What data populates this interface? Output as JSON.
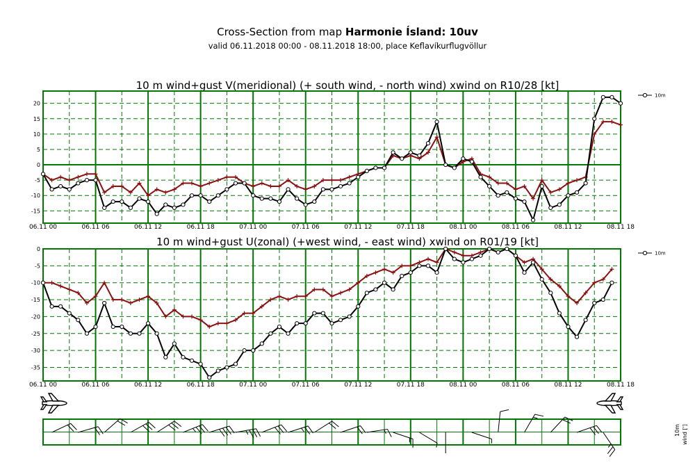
{
  "header": {
    "title_prefix": "Cross-Section from map ",
    "title_bold": "Harmonie Ísland: 10uv",
    "subtitle": "valid 06.11.2018 00:00 - 08.11.2018 18:00, place Keflavíkurflugvöllur"
  },
  "x_tick_labels": [
    "06.11 00",
    "06.11 06",
    "06.11 12",
    "06.11 18",
    "07.11 00",
    "07.11 06",
    "07.11 12",
    "07.11 18",
    "08.11 00",
    "08.11 06",
    "08.11 12",
    "08.11 18"
  ],
  "colors": {
    "grid": "#007700",
    "wind": "#000000",
    "gust": "#8b1010",
    "background": "#ffffff"
  },
  "icons": {
    "left": "airplane-icon",
    "right": "airplane-icon"
  },
  "barb_panel": {
    "label_level": "10m",
    "label_param": "wind [']"
  },
  "chart_data": [
    {
      "type": "line",
      "title": "10 m wind+gust V(meridional) (+ south wind, - north wind) xwind on R10/28 [kt]",
      "x_unit": "hours from 06.11.2018 00:00",
      "ylim": [
        -19,
        24
      ],
      "yticks": [
        20,
        15,
        10,
        5,
        0,
        -5,
        -10,
        -15
      ],
      "grid": true,
      "legend": "top-right",
      "series": [
        {
          "name": "10m",
          "color": "#000000",
          "marker": "circle",
          "values": [
            -3,
            -8,
            -7,
            -8,
            -6,
            -5,
            -5,
            -14,
            -12,
            -12,
            -14,
            -11,
            -12,
            -16,
            -13,
            -14,
            -13,
            -10,
            -10,
            -12,
            -10,
            -8,
            -6,
            -6,
            -10,
            -11,
            -11,
            -12,
            -8,
            -11,
            -13,
            -12,
            -8,
            -8,
            -7,
            -6,
            -4,
            -2,
            -1,
            -1,
            4,
            2,
            4,
            3,
            7,
            14,
            0,
            -1,
            2,
            1,
            -4,
            -7,
            -10,
            -9,
            -11,
            -12,
            -18,
            -7,
            -14,
            -13,
            -10,
            -9,
            -6,
            15,
            22,
            22,
            20
          ]
        },
        {
          "name": "",
          "color": "#8b1010",
          "marker": "plus",
          "values": [
            -3,
            -5,
            -4,
            -5,
            -4,
            -3,
            -3,
            -9,
            -7,
            -7,
            -9,
            -6,
            -10,
            -8,
            -9,
            -8,
            -6,
            -6,
            -7,
            -6,
            -5,
            -4,
            -4,
            -6,
            -7,
            -6,
            -7,
            -7,
            -5,
            -7,
            -8,
            -7,
            -5,
            -5,
            -5,
            -4,
            -3,
            -2,
            -1,
            -1,
            3,
            2,
            3,
            2,
            4,
            9,
            0,
            -1,
            1,
            2,
            -3,
            -4,
            -6,
            -6,
            -8,
            -7,
            -11,
            -5,
            -9,
            -8,
            -6,
            -5,
            -4,
            10,
            14,
            14,
            13
          ]
        }
      ]
    },
    {
      "type": "line",
      "title": "10 m wind+gust U(zonal) (+west wind, - east wind) xwind on R01/19 [kt]",
      "x_unit": "hours from 06.11.2018 00:00",
      "ylim": [
        -39,
        0
      ],
      "yticks": [
        0,
        -5,
        -10,
        -15,
        -20,
        -25,
        -30,
        -35
      ],
      "grid": true,
      "legend": "top-right",
      "series": [
        {
          "name": "10m",
          "color": "#000000",
          "marker": "circle",
          "values": [
            -10,
            -17,
            -17,
            -19,
            -21,
            -25,
            -23,
            -16,
            -23,
            -23,
            -25,
            -25,
            -22,
            -25,
            -32,
            -28,
            -32,
            -33,
            -34,
            -38,
            -36,
            -35,
            -34,
            -30,
            -30,
            -28,
            -25,
            -23,
            -25,
            -22,
            -22,
            -19,
            -19,
            -22,
            -21,
            -20,
            -17,
            -13,
            -12,
            -10,
            -12,
            -8,
            -7,
            -5,
            -5,
            -7,
            0,
            -3,
            -4,
            -3,
            -2,
            0,
            -1,
            0,
            -2,
            -7,
            -4,
            -9,
            -13,
            -19,
            -23,
            -26,
            -21,
            -16,
            -15,
            -10
          ]
        },
        {
          "name": "",
          "color": "#8b1010",
          "marker": "plus",
          "values": [
            -10,
            -10,
            -11,
            -12,
            -13,
            -16,
            -14,
            -10,
            -15,
            -15,
            -16,
            -15,
            -14,
            -16,
            -20,
            -18,
            -20,
            -20,
            -21,
            -23,
            -22,
            -22,
            -21,
            -19,
            -19,
            -17,
            -15,
            -14,
            -15,
            -14,
            -14,
            -12,
            -12,
            -14,
            -13,
            -12,
            -10,
            -8,
            -7,
            -6,
            -7,
            -5,
            -5,
            -4,
            -3,
            -4,
            0,
            -1,
            -2,
            -2,
            -1,
            0,
            -1,
            0,
            -2,
            -4,
            -3,
            -6,
            -9,
            -11,
            -14,
            -16,
            -13,
            -10,
            -9,
            -6
          ]
        }
      ]
    }
  ]
}
